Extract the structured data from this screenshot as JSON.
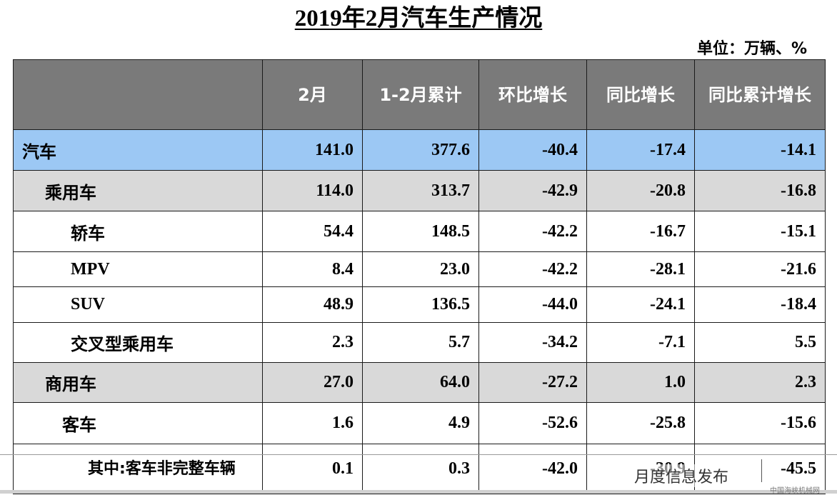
{
  "title": "2019年2月汽车生产情况",
  "unit": "单位：万辆、%",
  "headers": [
    "",
    "2月",
    "1-2月累计",
    "环比增长",
    "同比增长",
    "同比累计增长"
  ],
  "rows": [
    {
      "name": "汽车",
      "feb": "141.0",
      "cum": "377.6",
      "mom": "-40.4",
      "yoy": "-17.4",
      "yoy_cum": "-14.1"
    },
    {
      "name": "乘用车",
      "feb": "114.0",
      "cum": "313.7",
      "mom": "-42.9",
      "yoy": "-20.8",
      "yoy_cum": "-16.8"
    },
    {
      "name": "轿车",
      "feb": "54.4",
      "cum": "148.5",
      "mom": "-42.2",
      "yoy": "-16.7",
      "yoy_cum": "-15.1"
    },
    {
      "name": "MPV",
      "feb": "8.4",
      "cum": "23.0",
      "mom": "-42.2",
      "yoy": "-28.1",
      "yoy_cum": "-21.6"
    },
    {
      "name": "SUV",
      "feb": "48.9",
      "cum": "136.5",
      "mom": "-44.0",
      "yoy": "-24.1",
      "yoy_cum": "-18.4"
    },
    {
      "name": "交叉型乘用车",
      "feb": "2.3",
      "cum": "5.7",
      "mom": "-34.2",
      "yoy": "-7.1",
      "yoy_cum": "5.5"
    },
    {
      "name": "商用车",
      "feb": "27.0",
      "cum": "64.0",
      "mom": "-27.2",
      "yoy": "1.0",
      "yoy_cum": "2.3"
    },
    {
      "name": "客车",
      "feb": "1.6",
      "cum": "4.9",
      "mom": "-52.6",
      "yoy": "-25.8",
      "yoy_cum": "-15.6"
    },
    {
      "name": "其中:客车非完整车辆",
      "feb": "0.1",
      "cum": "0.3",
      "mom": "-42.0",
      "yoy": "-30.9",
      "yoy_cum": "-45.5"
    }
  ],
  "colors": {
    "header_bg": "#7a7a7a",
    "total_row_bg": "#9cc8f4",
    "category_row_bg": "#d9d9d9"
  },
  "overlay_text": "月度信息发布",
  "watermark": "中国海峡机械网"
}
